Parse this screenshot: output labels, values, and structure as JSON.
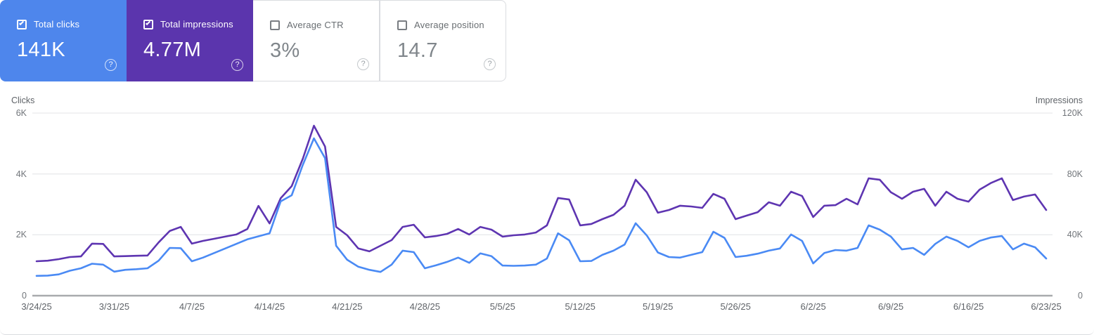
{
  "cards": [
    {
      "label": "Total clicks",
      "value": "141K",
      "checked": true,
      "bg": "#4e86ec",
      "fg": "#ffffff"
    },
    {
      "label": "Total impressions",
      "value": "4.77M",
      "checked": true,
      "bg": "#5b35ad",
      "fg": "#ffffff"
    },
    {
      "label": "Average CTR",
      "value": "3%",
      "checked": false,
      "bg": "#ffffff",
      "fg": "#80868b"
    },
    {
      "label": "Average position",
      "value": "14.7",
      "checked": false,
      "bg": "#ffffff",
      "fg": "#80868b"
    }
  ],
  "icons": {
    "help": "?",
    "checkbox_checked": "checked",
    "checkbox_unchecked": "unchecked"
  },
  "colors": {
    "clicks_accent": "#4e86ec",
    "impressions_accent": "#5b35ad",
    "clicks_line": "#4a8af4",
    "impressions_line": "#5e35b1",
    "gridline": "#e9eaec",
    "axis_line": "#a8aaad"
  },
  "chart_data": {
    "type": "line",
    "title": "",
    "grid": true,
    "legend_position": "none",
    "left_axis": {
      "title": "Clicks",
      "ticks": [
        "0",
        "2K",
        "4K",
        "6K"
      ],
      "range": [
        0,
        6000
      ]
    },
    "right_axis": {
      "title": "Impressions",
      "ticks": [
        "0",
        "40K",
        "80K",
        "120K"
      ],
      "range": [
        0,
        120000
      ]
    },
    "x_tick_labels": [
      "3/24/25",
      "3/31/25",
      "4/7/25",
      "4/14/25",
      "4/21/25",
      "4/28/25",
      "5/5/25",
      "5/12/25",
      "5/19/25",
      "5/26/25",
      "6/2/25",
      "6/9/25",
      "6/16/25",
      "6/23/25"
    ],
    "x_tick_day_indices": [
      0,
      7,
      14,
      21,
      28,
      35,
      42,
      49,
      56,
      63,
      70,
      77,
      84,
      91
    ],
    "x_start_date": "3/24/25",
    "x_end_date": "6/23/25",
    "series": [
      {
        "name": "Clicks",
        "axis": "left",
        "color": "#4a8af4",
        "values": [
          650,
          660,
          700,
          820,
          900,
          1050,
          1020,
          790,
          850,
          870,
          900,
          1150,
          1570,
          1560,
          1130,
          1250,
          1400,
          1550,
          1700,
          1850,
          1950,
          2050,
          3100,
          3300,
          4300,
          5170,
          4520,
          1640,
          1180,
          950,
          850,
          780,
          1020,
          1480,
          1430,
          900,
          1000,
          1110,
          1250,
          1080,
          1390,
          1300,
          990,
          980,
          990,
          1020,
          1220,
          2050,
          1820,
          1130,
          1140,
          1340,
          1480,
          1680,
          2380,
          1980,
          1420,
          1270,
          1250,
          1340,
          1430,
          2100,
          1900,
          1270,
          1310,
          1380,
          1480,
          1550,
          2010,
          1800,
          1060,
          1400,
          1500,
          1480,
          1570,
          2310,
          2170,
          1940,
          1520,
          1570,
          1340,
          1700,
          1940,
          1800,
          1590,
          1800,
          1910,
          1960,
          1520,
          1710,
          1590,
          1220
        ]
      },
      {
        "name": "Impressions",
        "axis": "right",
        "color": "#5e35b1",
        "values": [
          22600,
          23000,
          24000,
          25400,
          25800,
          34200,
          34000,
          25800,
          26000,
          26200,
          26400,
          35000,
          42500,
          45200,
          34200,
          36000,
          37400,
          38800,
          40200,
          43800,
          59000,
          47500,
          64000,
          72000,
          90000,
          111700,
          98000,
          45200,
          39700,
          31000,
          29100,
          32800,
          36500,
          45200,
          46600,
          38300,
          39200,
          40600,
          43800,
          40200,
          45200,
          43400,
          38800,
          39700,
          40200,
          41500,
          46200,
          64200,
          63200,
          46200,
          47100,
          50300,
          53100,
          59100,
          76200,
          68000,
          54500,
          56300,
          59100,
          58600,
          57700,
          66900,
          63700,
          50300,
          52600,
          54900,
          61400,
          59100,
          68300,
          65500,
          51700,
          59100,
          59500,
          63700,
          60000,
          77100,
          76200,
          68000,
          63700,
          68300,
          70200,
          59100,
          68300,
          63700,
          61800,
          69700,
          74000,
          77100,
          62800,
          65100,
          66500,
          56300
        ]
      }
    ]
  }
}
